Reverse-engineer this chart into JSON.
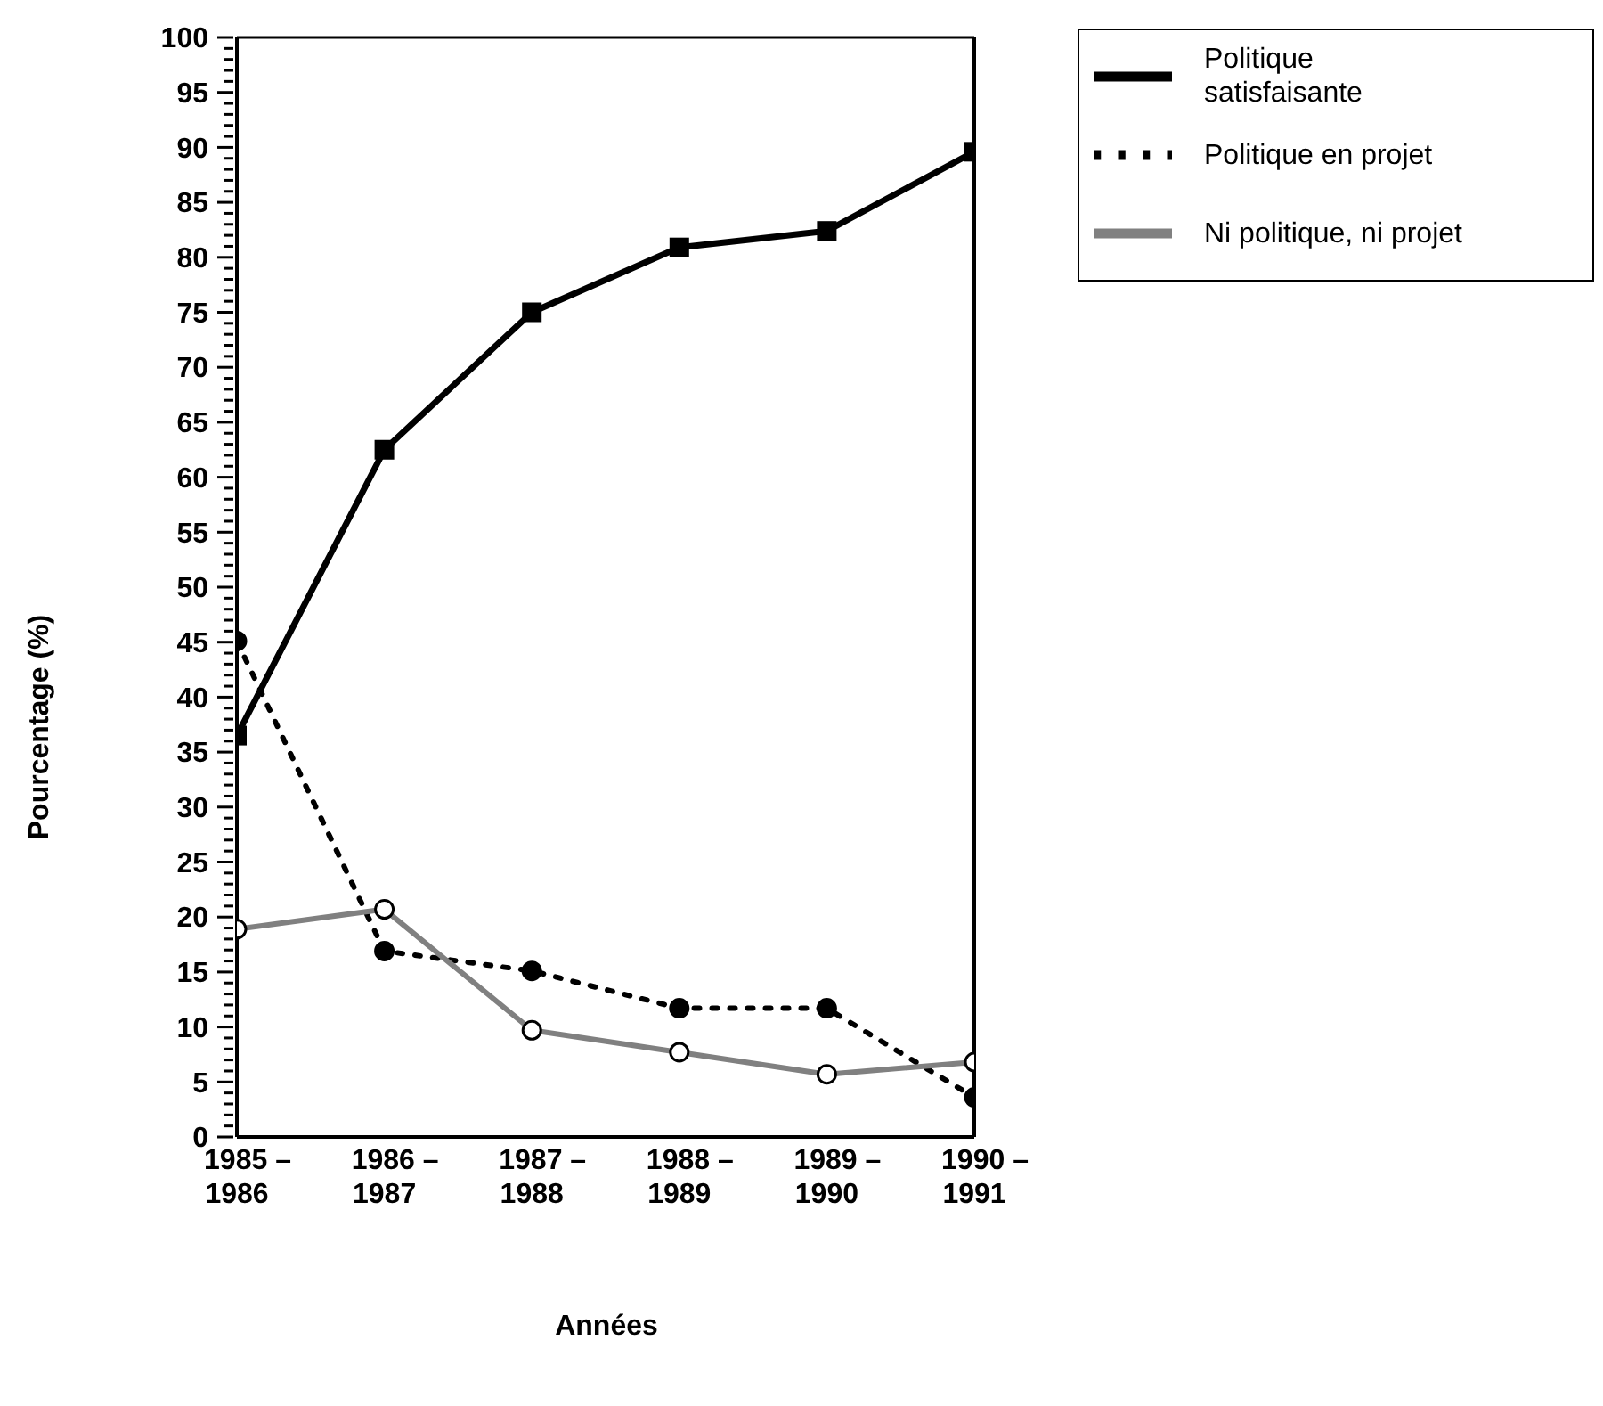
{
  "chart_data": {
    "type": "line",
    "xlabel": "Années",
    "ylabel": "Pourcentage (%)",
    "categories": [
      "1985 –\n1986",
      "1986 –\n1987",
      "1987 –\n1988",
      "1988 –\n1989",
      "1989 –\n1990",
      "1990 –\n1991"
    ],
    "series": [
      {
        "name": "Politique satisfaisante",
        "color": "#000000",
        "marker": "square",
        "line_style": "solid",
        "values": [
          36.5,
          62.5,
          75,
          80.9,
          82.4,
          89.6
        ]
      },
      {
        "name": "Politique en projet",
        "color": "#000000",
        "marker": "circle",
        "line_style": "dotted",
        "values": [
          45.1,
          16.9,
          15.1,
          11.7,
          11.7,
          3.6
        ]
      },
      {
        "name": "Ni politique, ni projet",
        "color": "#808080",
        "marker": "circle",
        "line_style": "solid",
        "values": [
          18.9,
          20.7,
          9.7,
          7.7,
          5.7,
          6.8
        ]
      }
    ],
    "ylim": [
      0,
      100
    ],
    "yticks": [
      0,
      {
        "value": 1,
        "label": null
      },
      {
        "value": 2,
        "label": null
      },
      {
        "value": 3,
        "label": null
      },
      {
        "value": 4,
        "label": null
      },
      5,
      {
        "value": 6,
        "label": null
      },
      {
        "value": 7,
        "label": null
      },
      {
        "value": 8,
        "label": null
      },
      {
        "value": 9,
        "label": null
      },
      10,
      {
        "value": 11,
        "label": null
      },
      {
        "value": 12,
        "label": null
      },
      {
        "value": 13,
        "label": null
      },
      {
        "value": 14,
        "label": null
      },
      15,
      {
        "value": 16,
        "label": null
      },
      {
        "value": 17,
        "label": null
      },
      {
        "value": 18,
        "label": null
      },
      {
        "value": 19,
        "label": null
      },
      20,
      {
        "value": 21,
        "label": null
      },
      {
        "value": 22,
        "label": null
      },
      {
        "value": 23,
        "label": null
      },
      {
        "value": 24,
        "label": null
      },
      25,
      {
        "value": 26,
        "label": null
      },
      {
        "value": 27,
        "label": null
      },
      {
        "value": 28,
        "label": null
      },
      {
        "value": 29,
        "label": null
      },
      30,
      {
        "value": 31,
        "label": null
      },
      {
        "value": 32,
        "label": null
      },
      {
        "value": 33,
        "label": null
      },
      {
        "value": 34,
        "label": null
      },
      35,
      {
        "value": 36,
        "label": null
      },
      {
        "value": 37,
        "label": null
      },
      {
        "value": 38,
        "label": null
      },
      {
        "value": 39,
        "label": null
      },
      40,
      {
        "value": 41,
        "label": null
      },
      {
        "value": 42,
        "label": null
      },
      {
        "value": 43,
        "label": null
      },
      {
        "value": 44,
        "label": null
      },
      45,
      {
        "value": 46,
        "label": null
      },
      {
        "value": 47,
        "label": null
      },
      {
        "value": 48,
        "label": null
      },
      {
        "value": 49,
        "label": null
      },
      50,
      {
        "value": 51,
        "label": null
      },
      {
        "value": 52,
        "label": null
      },
      {
        "value": 53,
        "label": null
      },
      {
        "value": 54,
        "label": null
      },
      55,
      {
        "value": 56,
        "label": null
      },
      {
        "value": 57,
        "label": null
      },
      {
        "value": 58,
        "label": null
      },
      {
        "value": 59,
        "label": null
      },
      60,
      {
        "value": 61,
        "label": null
      },
      {
        "value": 62,
        "label": null
      },
      {
        "value": 63,
        "label": null
      },
      {
        "value": 64,
        "label": null
      },
      65,
      {
        "value": 66,
        "label": null
      },
      {
        "value": 67,
        "label": null
      },
      {
        "value": 68,
        "label": null
      },
      {
        "value": 69,
        "label": null
      },
      70,
      {
        "value": 71,
        "label": null
      },
      {
        "value": 72,
        "label": null
      },
      {
        "value": 73,
        "label": null
      },
      {
        "value": 74,
        "label": null
      },
      75,
      {
        "value": 76,
        "label": null
      },
      {
        "value": 77,
        "label": null
      },
      {
        "value": 78,
        "label": null
      },
      {
        "value": 79,
        "label": null
      },
      80,
      {
        "value": 81,
        "label": null
      },
      {
        "value": 82,
        "label": null
      },
      {
        "value": 83,
        "label": null
      },
      {
        "value": 84,
        "label": null
      },
      85,
      {
        "value": 86,
        "label": null
      },
      {
        "value": 87,
        "label": null
      },
      {
        "value": 88,
        "label": null
      },
      {
        "value": 89,
        "label": null
      },
      90,
      {
        "value": 91,
        "label": null
      },
      {
        "value": 92,
        "label": null
      },
      {
        "value": 93,
        "label": null
      },
      {
        "value": 94,
        "label": null
      },
      95,
      {
        "value": 96,
        "label": null
      },
      {
        "value": 97,
        "label": null
      },
      {
        "value": 98,
        "label": null
      },
      {
        "value": 99,
        "label": null
      },
      100
    ],
    "grid": false,
    "legend": "top right"
  }
}
